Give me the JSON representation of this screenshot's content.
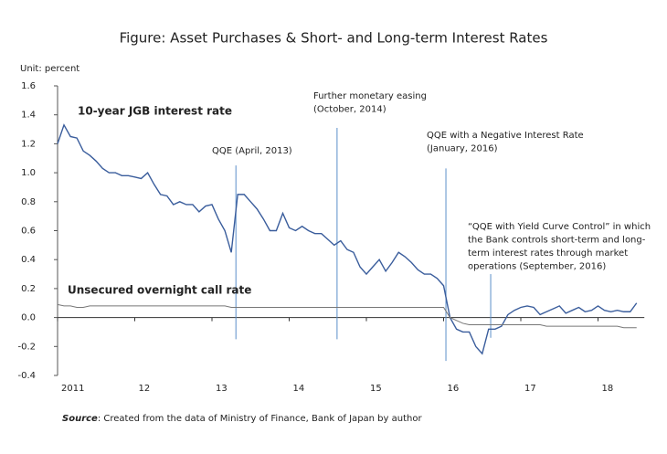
{
  "chart_data": {
    "type": "line",
    "title": "Figure: Asset Purchases & Short- and Long-term Interest Rates",
    "y_unit": "Unit: percent",
    "source": {
      "label": "Source",
      "text": ": Created from the data of Ministry of Finance, Bank of Japan by author"
    },
    "x": [
      2011,
      2011.083,
      2011.167,
      2011.25,
      2011.333,
      2011.417,
      2011.5,
      2011.583,
      2011.667,
      2011.75,
      2011.833,
      2011.917,
      2012,
      2012.083,
      2012.167,
      2012.25,
      2012.333,
      2012.417,
      2012.5,
      2012.583,
      2012.667,
      2012.75,
      2012.833,
      2012.917,
      2013,
      2013.083,
      2013.167,
      2013.25,
      2013.333,
      2013.417,
      2013.5,
      2013.583,
      2013.667,
      2013.75,
      2013.833,
      2013.917,
      2014,
      2014.083,
      2014.167,
      2014.25,
      2014.333,
      2014.417,
      2014.5,
      2014.583,
      2014.667,
      2014.75,
      2014.833,
      2014.917,
      2015,
      2015.083,
      2015.167,
      2015.25,
      2015.333,
      2015.417,
      2015.5,
      2015.583,
      2015.667,
      2015.75,
      2015.833,
      2015.917,
      2016,
      2016.083,
      2016.167,
      2016.25,
      2016.333,
      2016.417,
      2016.5,
      2016.583,
      2016.667,
      2016.75,
      2016.833,
      2016.917,
      2017,
      2017.083,
      2017.167,
      2017.25,
      2017.333,
      2017.417,
      2017.5,
      2017.583,
      2017.667,
      2017.75,
      2017.833,
      2017.917,
      2018,
      2018.083,
      2018.167,
      2018.25,
      2018.333,
      2018.417,
      2018.5
    ],
    "series": [
      {
        "name": "10-year JGB interest rate",
        "color": "#3a5d9c",
        "values": [
          1.2,
          1.33,
          1.25,
          1.24,
          1.15,
          1.12,
          1.08,
          1.03,
          1.0,
          1.0,
          0.98,
          0.98,
          0.97,
          0.96,
          1.0,
          0.92,
          0.85,
          0.84,
          0.78,
          0.8,
          0.78,
          0.78,
          0.73,
          0.77,
          0.78,
          0.68,
          0.6,
          0.45,
          0.85,
          0.85,
          0.8,
          0.75,
          0.68,
          0.6,
          0.6,
          0.72,
          0.62,
          0.6,
          0.63,
          0.6,
          0.58,
          0.58,
          0.54,
          0.5,
          0.53,
          0.47,
          0.45,
          0.35,
          0.3,
          0.35,
          0.4,
          0.32,
          0.38,
          0.45,
          0.42,
          0.38,
          0.33,
          0.3,
          0.3,
          0.27,
          0.22,
          0.0,
          -0.08,
          -0.1,
          -0.1,
          -0.2,
          -0.25,
          -0.08,
          -0.08,
          -0.06,
          0.02,
          0.05,
          0.07,
          0.08,
          0.07,
          0.02,
          0.04,
          0.06,
          0.08,
          0.03,
          0.05,
          0.07,
          0.04,
          0.05,
          0.08,
          0.05,
          0.04,
          0.05,
          0.04,
          0.04,
          0.1
        ]
      },
      {
        "name": "Unsecured overnight call rate",
        "color": "#777777",
        "values": [
          0.09,
          0.08,
          0.08,
          0.07,
          0.07,
          0.08,
          0.08,
          0.08,
          0.08,
          0.08,
          0.08,
          0.08,
          0.08,
          0.08,
          0.08,
          0.08,
          0.08,
          0.08,
          0.08,
          0.08,
          0.08,
          0.08,
          0.08,
          0.08,
          0.08,
          0.08,
          0.08,
          0.07,
          0.07,
          0.07,
          0.07,
          0.07,
          0.07,
          0.07,
          0.07,
          0.07,
          0.07,
          0.07,
          0.07,
          0.07,
          0.07,
          0.07,
          0.07,
          0.07,
          0.07,
          0.07,
          0.07,
          0.07,
          0.07,
          0.07,
          0.07,
          0.07,
          0.07,
          0.07,
          0.07,
          0.07,
          0.07,
          0.07,
          0.07,
          0.07,
          0.07,
          0.0,
          -0.02,
          -0.04,
          -0.05,
          -0.05,
          -0.05,
          -0.05,
          -0.05,
          -0.05,
          -0.05,
          -0.05,
          -0.05,
          -0.05,
          -0.05,
          -0.05,
          -0.06,
          -0.06,
          -0.06,
          -0.06,
          -0.06,
          -0.06,
          -0.06,
          -0.06,
          -0.06,
          -0.06,
          -0.06,
          -0.06,
          -0.07,
          -0.07,
          -0.07
        ]
      }
    ],
    "xlim": [
      2011,
      2018.6
    ],
    "xticks": [
      {
        "value": 2011,
        "label": "2011"
      },
      {
        "value": 2012,
        "label": "12"
      },
      {
        "value": 2013,
        "label": "13"
      },
      {
        "value": 2014,
        "label": "14"
      },
      {
        "value": 2015,
        "label": "15"
      },
      {
        "value": 2016,
        "label": "16"
      },
      {
        "value": 2017,
        "label": "17"
      },
      {
        "value": 2018,
        "label": "18"
      }
    ],
    "ylim": [
      -0.4,
      1.6
    ],
    "yticks": [
      -0.4,
      -0.2,
      {
        "value": 0,
        "label": "0.0"
      },
      0.2,
      0.4,
      0.6,
      0.8,
      {
        "value": 1,
        "label": "1.0"
      },
      1.2,
      1.4,
      1.6
    ],
    "annotations": [
      {
        "lines": [
          "QQE (April, 2013)"
        ],
        "x": 2013.31,
        "line_top": 1.05,
        "line_bottom": -0.15
      },
      {
        "lines": [
          "Further monetary easing",
          "(October, 2014)"
        ],
        "x": 2014.62,
        "line_top": 1.31,
        "line_bottom": -0.15
      },
      {
        "lines": [
          "QQE with a Negative Interest Rate",
          "(January, 2016)"
        ],
        "x": 2016.03,
        "line_top": 1.03,
        "line_bottom": -0.3
      },
      {
        "lines": [
          "“QQE with Yield Curve Control” in which",
          "the Bank controls short-term and long-",
          "term interest rates through market",
          "operations (September, 2016)"
        ],
        "x": 2016.61,
        "line_top": 0.3,
        "line_bottom": -0.14
      }
    ]
  }
}
